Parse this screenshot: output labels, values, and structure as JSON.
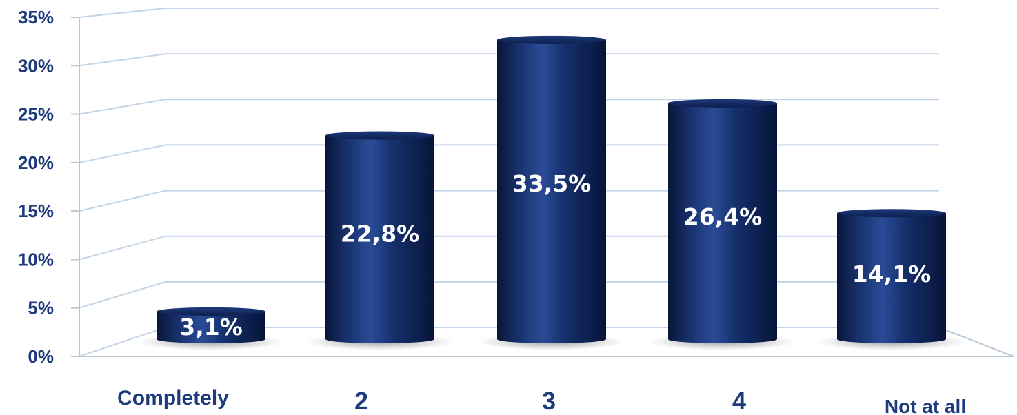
{
  "chart_data": {
    "type": "bar",
    "categories": [
      "Completely",
      "2",
      "3",
      "4",
      "Not at all"
    ],
    "values": [
      3.1,
      22.8,
      33.5,
      26.4,
      14.1
    ],
    "data_labels": [
      "3,1%",
      "22,8%",
      "33,5%",
      "26,4%",
      "14,1%"
    ],
    "y_ticks": [
      "0%",
      "5%",
      "10%",
      "15%",
      "20%",
      "25%",
      "30%",
      "35%"
    ],
    "ylim": [
      0,
      35
    ],
    "grid": true,
    "legend": "none",
    "style": "3d-cylinder"
  },
  "colors": {
    "bar": "#0f2356",
    "bar_highlight": "#2a4c96",
    "text": "#1d3a7a",
    "grid": "#c2d4e6"
  }
}
